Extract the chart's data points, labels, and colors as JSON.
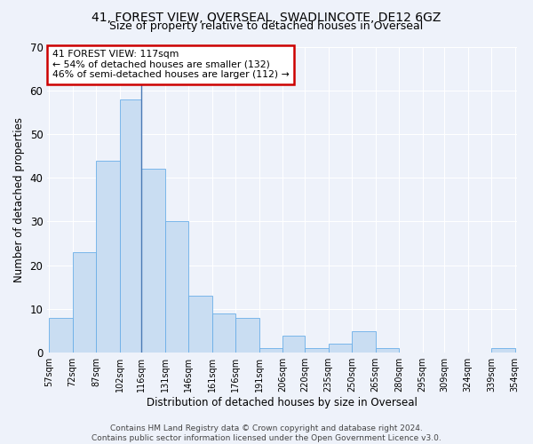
{
  "title": "41, FOREST VIEW, OVERSEAL, SWADLINCOTE, DE12 6GZ",
  "subtitle": "Size of property relative to detached houses in Overseal",
  "xlabel": "Distribution of detached houses by size in Overseal",
  "ylabel": "Number of detached properties",
  "bin_edges": [
    57,
    72,
    87,
    102,
    116,
    131,
    146,
    161,
    176,
    191,
    206,
    220,
    235,
    250,
    265,
    280,
    295,
    309,
    324,
    339,
    354
  ],
  "bin_labels": [
    "57sqm",
    "72sqm",
    "87sqm",
    "102sqm",
    "116sqm",
    "131sqm",
    "146sqm",
    "161sqm",
    "176sqm",
    "191sqm",
    "206sqm",
    "220sqm",
    "235sqm",
    "250sqm",
    "265sqm",
    "280sqm",
    "295sqm",
    "309sqm",
    "324sqm",
    "339sqm",
    "354sqm"
  ],
  "counts": [
    8,
    23,
    44,
    58,
    42,
    30,
    13,
    9,
    8,
    1,
    4,
    1,
    2,
    5,
    1,
    0,
    0,
    0,
    0,
    1
  ],
  "bar_color": "#c9ddf2",
  "bar_edge_color": "#6aaee8",
  "vline_x": 116,
  "vline_color": "#4a7ab5",
  "ylim": [
    0,
    70
  ],
  "yticks": [
    0,
    10,
    20,
    30,
    40,
    50,
    60,
    70
  ],
  "annotation_text": "41 FOREST VIEW: 117sqm\n← 54% of detached houses are smaller (132)\n46% of semi-detached houses are larger (112) →",
  "annotation_box_color": "white",
  "annotation_box_edge": "#cc0000",
  "footer_text": "Contains HM Land Registry data © Crown copyright and database right 2024.\nContains public sector information licensed under the Open Government Licence v3.0.",
  "background_color": "#eef2fa",
  "grid_color": "#ffffff",
  "title_fontsize": 10,
  "subtitle_fontsize": 9,
  "ylabel_fontsize": 8.5,
  "xlabel_fontsize": 8.5
}
